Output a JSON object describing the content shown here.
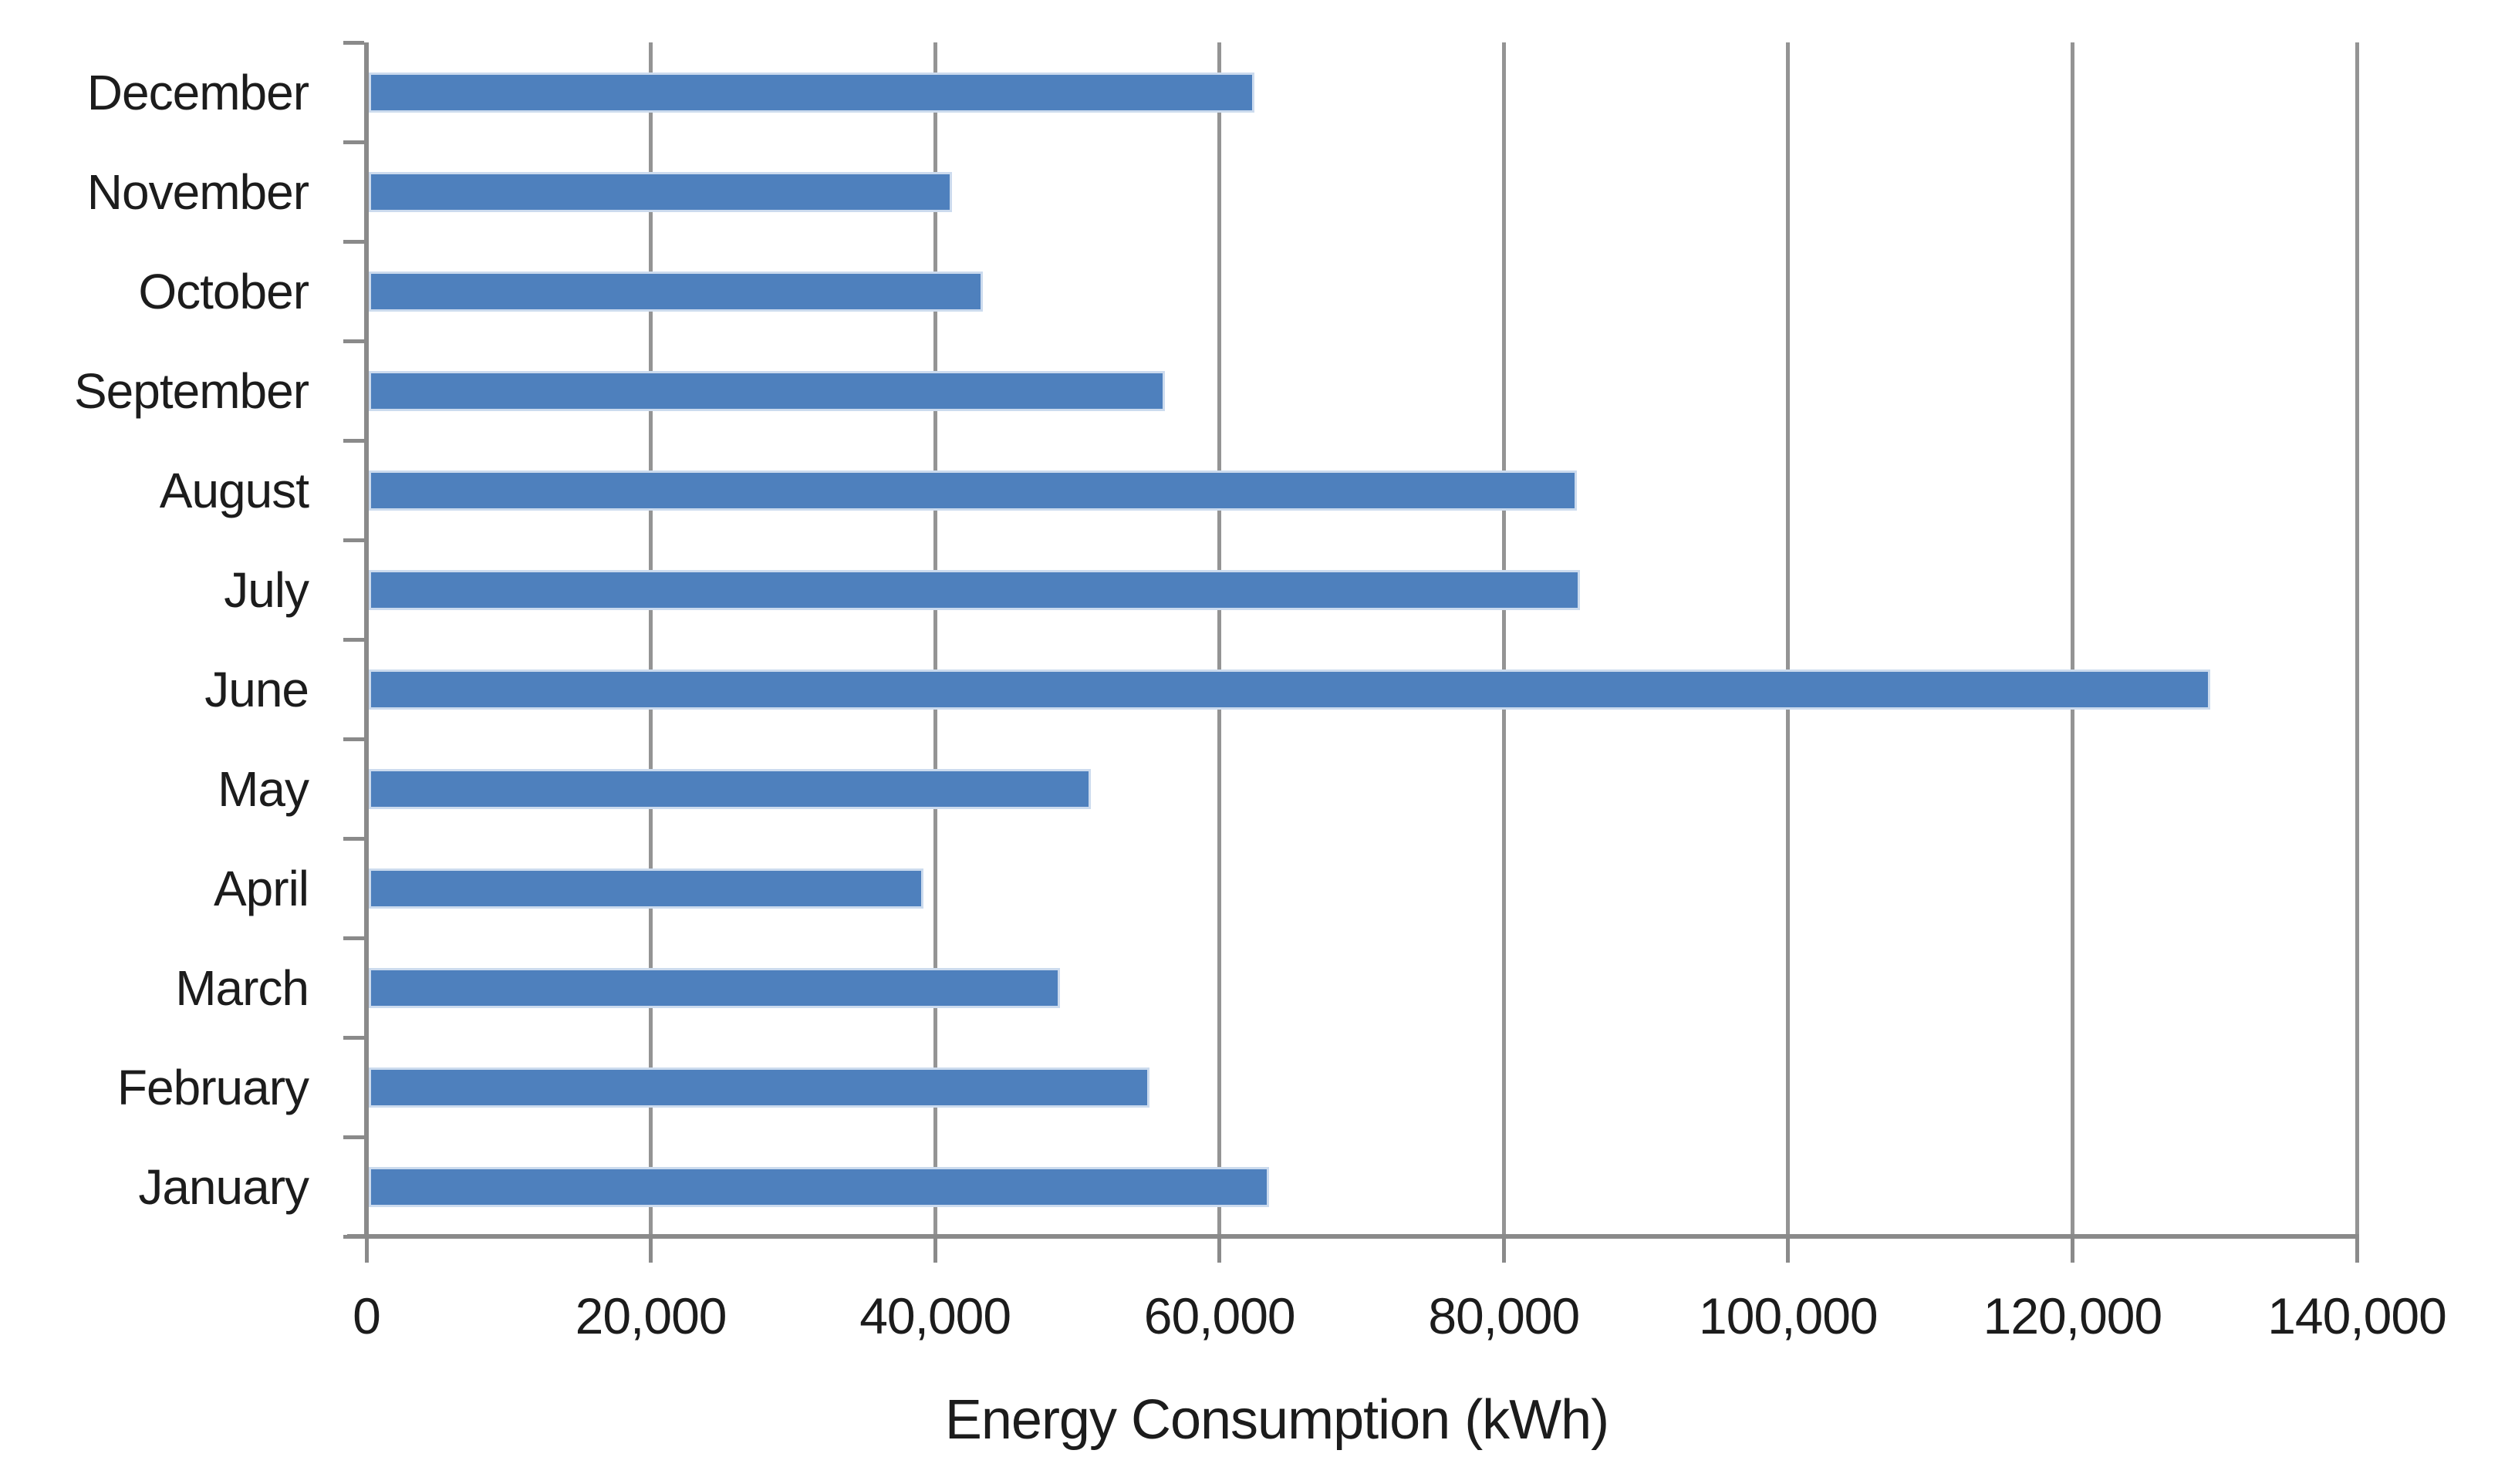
{
  "chart": {
    "axis_title": "Energy Consumption (kWh)",
    "value_axis_tick_labels": [
      "0",
      "20,000",
      "40,000",
      "60,000",
      "80,000",
      "100,000",
      "120,000",
      "140,000"
    ],
    "colors": {
      "bar_fill": "#4e80bd",
      "bar_border": "#ccdbee",
      "gridline": "#949494",
      "axis_line": "#8a8a8a",
      "text": "#1c1c1c",
      "background": "#ffffff"
    }
  },
  "chart_data": {
    "type": "bar",
    "orientation": "horizontal",
    "title": "Energy Consumption (kWh)",
    "xlabel": "Energy Consumption (kWh)",
    "ylabel": "",
    "xlim": [
      0,
      140000
    ],
    "tick_step": 20000,
    "grid": true,
    "legend": false,
    "categories_top_to_bottom": [
      "December",
      "November",
      "October",
      "September",
      "August",
      "July",
      "June",
      "May",
      "April",
      "March",
      "February",
      "January"
    ],
    "values_top_to_bottom": [
      62300,
      41000,
      43200,
      56000,
      85000,
      85200,
      129500,
      50800,
      39000,
      48600,
      54900,
      63300
    ],
    "categories": [
      "January",
      "February",
      "March",
      "April",
      "May",
      "June",
      "July",
      "August",
      "September",
      "October",
      "November",
      "December"
    ],
    "values": [
      63300,
      54900,
      48600,
      39000,
      50800,
      129500,
      85200,
      85000,
      56000,
      43200,
      41000,
      62300
    ]
  }
}
